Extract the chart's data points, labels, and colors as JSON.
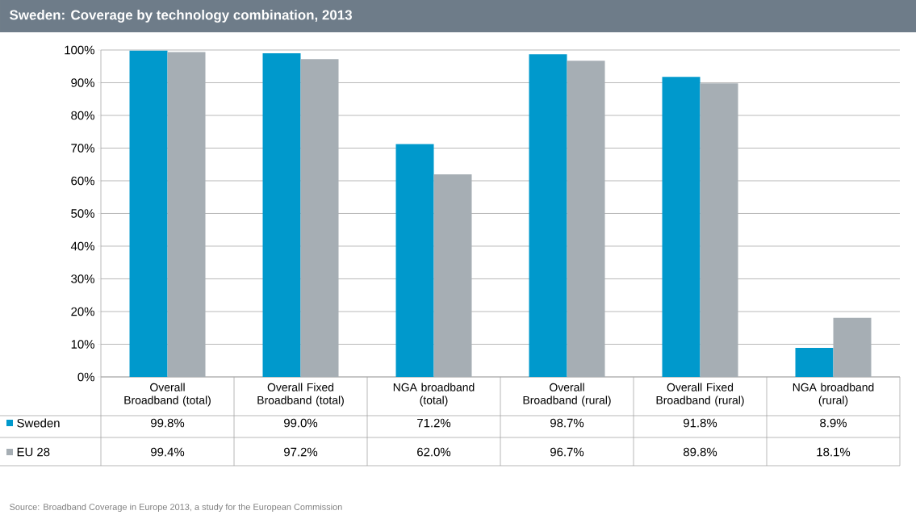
{
  "chart_data": {
    "type": "bar",
    "title": "Sweden: Coverage by technology combination, 2013",
    "categories": [
      "Overall Broadband (total)",
      "Overall Fixed Broadband (total)",
      "NGA broadband (total)",
      "Overall Broadband (rural)",
      "Overall Fixed Broadband (rural)",
      "NGA broadband (rural)"
    ],
    "series": [
      {
        "name": "Sweden",
        "color": "#0099cc",
        "values": [
          99.8,
          99.0,
          71.2,
          98.7,
          91.8,
          8.9
        ],
        "value_labels": [
          "99.8%",
          "99.0%",
          "71.2%",
          "98.7%",
          "91.8%",
          "8.9%"
        ]
      },
      {
        "name": "EU 28",
        "color": "#a6aeb4",
        "values": [
          99.4,
          97.2,
          62.0,
          96.7,
          89.8,
          18.1
        ],
        "value_labels": [
          "99.4%",
          "97.2%",
          "62.0%",
          "96.7%",
          "89.8%",
          "18.1%"
        ]
      }
    ],
    "ylim": [
      0,
      100
    ],
    "yticks": [
      {
        "value": 0,
        "label": "0%"
      },
      {
        "value": 10,
        "label": "10%"
      },
      {
        "value": 20,
        "label": "20%"
      },
      {
        "value": 30,
        "label": "30%"
      },
      {
        "value": 40,
        "label": "40%"
      },
      {
        "value": 50,
        "label": "50%"
      },
      {
        "value": 60,
        "label": "60%"
      },
      {
        "value": 70,
        "label": "70%"
      },
      {
        "value": 80,
        "label": "80%"
      },
      {
        "value": 90,
        "label": "90%"
      },
      {
        "value": 100,
        "label": "100%"
      }
    ],
    "grid": "y",
    "legend": "bottom",
    "annotations": [
      "Source: Broadband Coverage in Europe 2013, a study for the European Commission"
    ]
  }
}
